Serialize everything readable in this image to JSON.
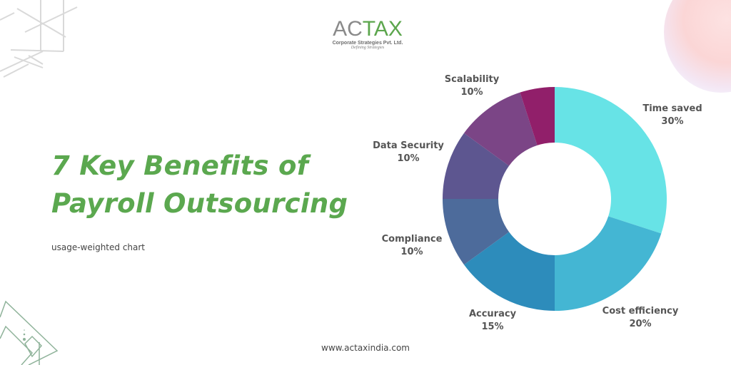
{
  "logo": {
    "mark_prefix": "AC",
    "mark_suffix": "TAX",
    "company": "Corporate Strategies Pvt. Ltd.",
    "tagline": "Defining Strategies"
  },
  "headline": {
    "line1": "7 Key Benefits of",
    "line2": "Payroll Outsourcing"
  },
  "subtitle": "usage-weighted chart",
  "footer": {
    "url": "www.actaxindia.com"
  },
  "colors": {
    "headline": "#5ba84f",
    "label": "#555555"
  },
  "labels": [
    {
      "name": "Time saved",
      "pct": "30%"
    },
    {
      "name": "Cost efficiency",
      "pct": "20%"
    },
    {
      "name": "Accuracy",
      "pct": "15%"
    },
    {
      "name": "Compliance",
      "pct": "10%"
    },
    {
      "name": "Data Security",
      "pct": "10%"
    },
    {
      "name": "Scalability",
      "pct": "10%"
    }
  ],
  "chart_data": {
    "type": "pie",
    "subtype": "donut",
    "title": "7 Key Benefits of Payroll Outsourcing",
    "subtitle": "usage-weighted chart",
    "categories": [
      "Time saved",
      "Cost efficiency",
      "Accuracy",
      "Compliance",
      "Data Security",
      "Scalability",
      "(unlabeled)"
    ],
    "values": [
      30,
      20,
      15,
      10,
      10,
      10,
      5
    ],
    "colors": [
      "#67e3e6",
      "#44b6d3",
      "#2d8cbb",
      "#4d6b9b",
      "#5d5690",
      "#7b4586",
      "#911f6a"
    ],
    "start_angle_deg": 0,
    "direction": "clockwise",
    "legend": "none (direct labels)"
  }
}
